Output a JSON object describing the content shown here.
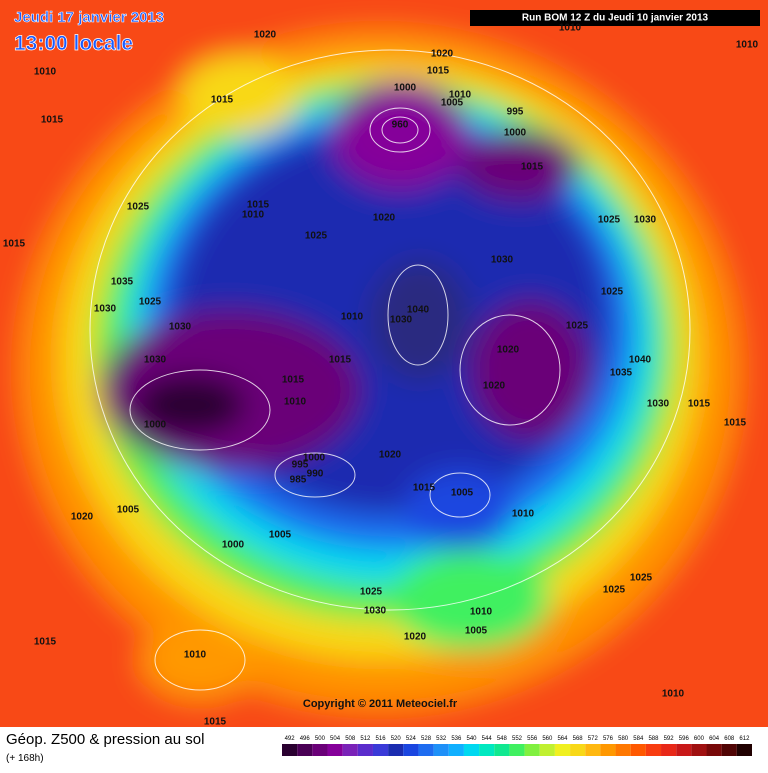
{
  "header": {
    "date": "Jeudi 17 janvier 2013",
    "time": "13:00 locale",
    "run": "Run BOM 12 Z du Jeudi 10 janvier 2013"
  },
  "copyright": "Copyright © 2011 Meteociel.fr",
  "footer": {
    "title": "Géop. Z500 & pression au sol",
    "lead": "(+ 168h)"
  },
  "scale": {
    "values": [
      492,
      496,
      500,
      504,
      508,
      512,
      516,
      520,
      524,
      528,
      532,
      536,
      540,
      544,
      548,
      552,
      556,
      560,
      564,
      568,
      572,
      576,
      580,
      584,
      588,
      592,
      596,
      600,
      604,
      608,
      612
    ],
    "colors": [
      "#2a0030",
      "#4a0055",
      "#6a0078",
      "#85009a",
      "#7a22b8",
      "#5a2ccc",
      "#3a3ad8",
      "#1a2cb0",
      "#1a46e0",
      "#1e6cf0",
      "#1e90f8",
      "#10b0ff",
      "#00d8f0",
      "#00e8c0",
      "#10e890",
      "#40f060",
      "#80f040",
      "#c0f030",
      "#f0f020",
      "#f8d818",
      "#ffb810",
      "#ff9800",
      "#ff7800",
      "#ff5800",
      "#f83c10",
      "#e82818",
      "#c81818",
      "#a01010",
      "#780808",
      "#500404",
      "#200000"
    ]
  },
  "isobars": [
    "1020",
    "1010",
    "1015",
    "1015",
    "1020",
    "1015",
    "1010",
    "1005",
    "1000",
    "995",
    "1000",
    "960",
    "1015",
    "1025",
    "1015",
    "1010",
    "1020",
    "1025",
    "1025",
    "1030",
    "1015",
    "1035",
    "1025",
    "1030",
    "1030",
    "1025",
    "1030",
    "1010",
    "1040",
    "1030",
    "1025",
    "1020",
    "1030",
    "1015",
    "1040",
    "1035",
    "1015",
    "1020",
    "1010",
    "1030",
    "1015",
    "1015",
    "1000",
    "1000",
    "995",
    "990",
    "985",
    "1020",
    "1015",
    "1005",
    "1010",
    "1005",
    "1020",
    "1005",
    "1000",
    "1025",
    "1025",
    "1025",
    "1030",
    "1010",
    "1005",
    "1020",
    "1015",
    "1010",
    "1010",
    "1015",
    "1010",
    "1010"
  ]
}
